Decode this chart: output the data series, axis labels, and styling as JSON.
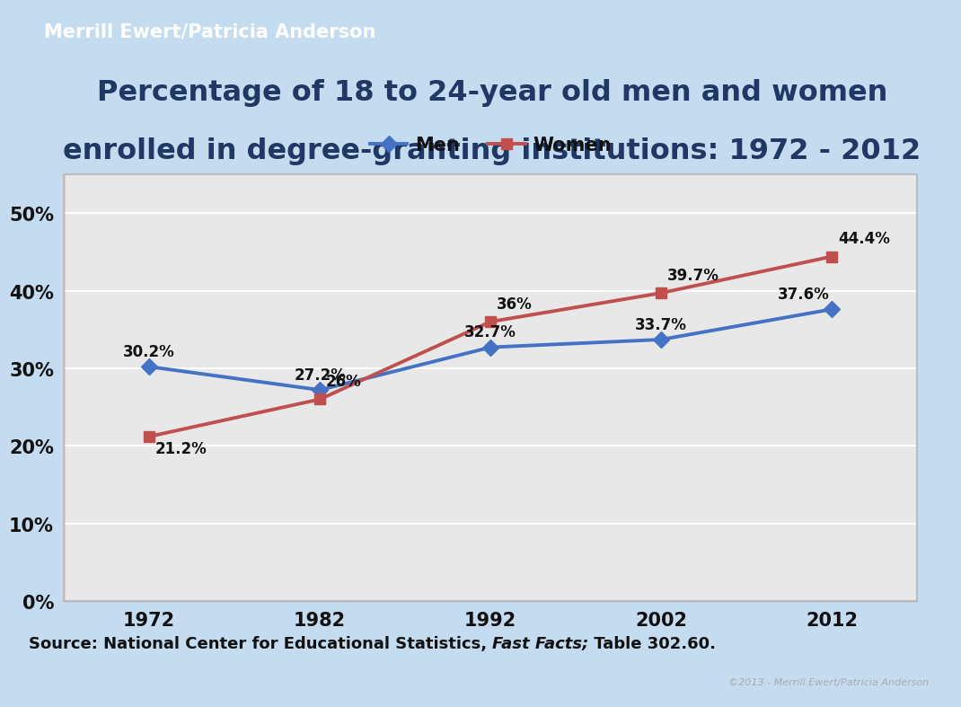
{
  "title_line1": "Percentage of 18 to 24-year old men and women",
  "title_line2": "enrolled in degree-granting institutions: 1972 - 2012",
  "header_text": "Merrill Ewert/Patricia Anderson",
  "footer_source": "Source: National Center for Educational Statistics, ",
  "footer_italic": "Fast Facts;",
  "footer_end": " Table 302.60.",
  "copyright": "©2013 - Merrill Ewert/Patricia Anderson",
  "years": [
    1972,
    1982,
    1992,
    2002,
    2012
  ],
  "men_values": [
    30.2,
    27.2,
    32.7,
    33.7,
    37.6
  ],
  "women_values": [
    21.2,
    26.0,
    36.0,
    39.7,
    44.4
  ],
  "men_labels": [
    "30.2%",
    "27.2%",
    "32.7%",
    "33.7%",
    "37.6%"
  ],
  "women_labels": [
    "21.2%",
    "26%",
    "36%",
    "39.7%",
    "44.4%"
  ],
  "men_color": "#4472C4",
  "women_color": "#C0504D",
  "header_bg": "#262626",
  "header_text_color": "#FFFFFF",
  "footer_bg": "#262626",
  "slide_bg": "#C5DCF0",
  "plot_bg": "#E8E8E8",
  "chart_border": "#AAAAAA",
  "title_color": "#1F3864",
  "ytick_labels": [
    "0%",
    "10%",
    "20%",
    "30%",
    "40%",
    "50%"
  ],
  "ytick_values": [
    0,
    10,
    20,
    30,
    40,
    50
  ],
  "ylim": [
    0,
    55
  ],
  "legend_men": "Men",
  "legend_women": "Women",
  "source_color": "#111111"
}
